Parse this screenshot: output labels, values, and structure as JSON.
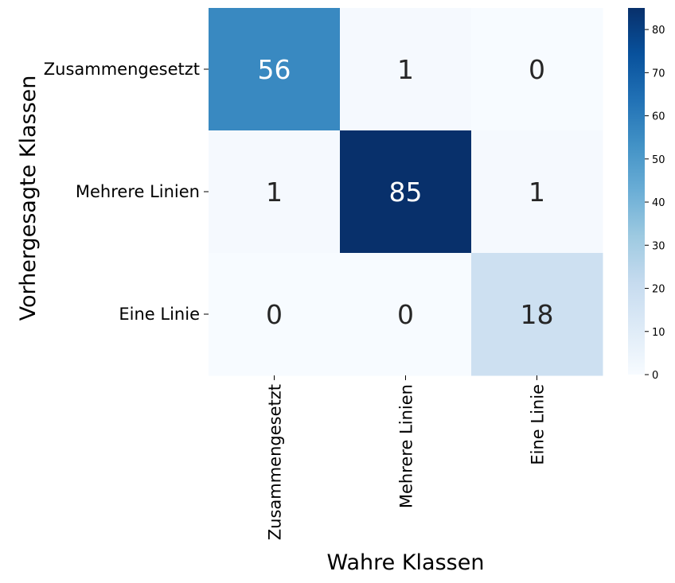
{
  "chart_data": {
    "type": "heatmap",
    "title": "",
    "xlabel": "Wahre Klassen",
    "ylabel": "Vorhergesagte Klassen",
    "x_categories": [
      "Zusammengesetzt",
      "Mehrere Linien",
      "Eine Linie"
    ],
    "y_categories": [
      "Zusammengesetzt",
      "Mehrere Linien",
      "Eine Linie"
    ],
    "values": [
      [
        56,
        1,
        0
      ],
      [
        1,
        85,
        1
      ],
      [
        0,
        0,
        18
      ]
    ],
    "colormap": "Blues",
    "colorbar": {
      "range": [
        0,
        85
      ],
      "ticks": [
        "0",
        "10",
        "20",
        "30",
        "40",
        "50",
        "60",
        "70",
        "80"
      ]
    },
    "colors": {
      "low": "#f7fbff",
      "high": "#08306b",
      "text_dark": "#262626",
      "text_light": "#ffffff"
    },
    "grid": false
  }
}
